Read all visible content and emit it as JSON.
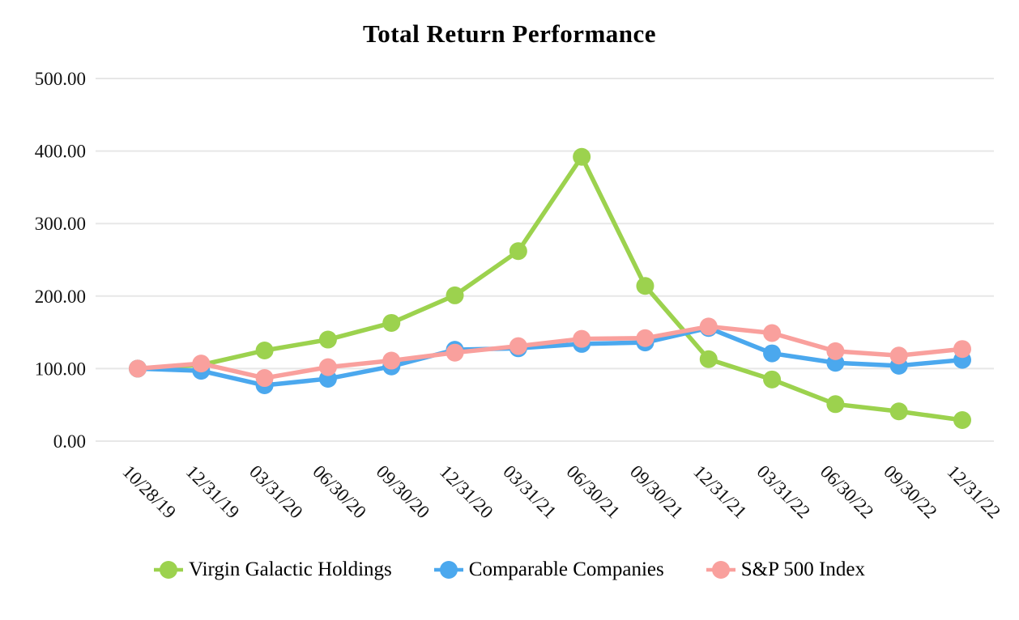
{
  "chart_data": {
    "type": "line",
    "title": "Total Return Performance",
    "x_labels": [
      "10/28/19",
      "12/31/19",
      "03/31/20",
      "06/30/20",
      "09/30/20",
      "12/31/20",
      "03/31/21",
      "06/30/21",
      "09/30/21",
      "12/31/21",
      "03/31/22",
      "06/30/22",
      "09/30/22",
      "12/31/22"
    ],
    "y_ticks": [
      {
        "label": "500.00",
        "value": 500
      },
      {
        "label": "400.00",
        "value": 400
      },
      {
        "label": "300.00",
        "value": 300
      },
      {
        "label": "200.00",
        "value": 200
      },
      {
        "label": "100.00",
        "value": 100
      },
      {
        "label": "0.00",
        "value": 0
      }
    ],
    "ylim": [
      0,
      500
    ],
    "grid": "horizontal-only",
    "gridline_color": "#E7E7E7",
    "legend_position": "bottom",
    "marker_style": "filled-circle",
    "series": [
      {
        "name": "Virgin Galactic Holdings",
        "color": "#9CD24E",
        "values": [
          100,
          105,
          125,
          140,
          163,
          201,
          262,
          392,
          214,
          113,
          85,
          51,
          41,
          29
        ]
      },
      {
        "name": "Comparable Companies",
        "color": "#4BA8EE",
        "values": [
          100,
          97,
          77,
          86,
          103,
          126,
          128,
          134,
          136,
          156,
          121,
          108,
          104,
          112
        ]
      },
      {
        "name": "S&P 500 Index",
        "color": "#F9A09D",
        "values": [
          100,
          107,
          87,
          102,
          111,
          122,
          131,
          141,
          142,
          158,
          149,
          124,
          118,
          127
        ]
      }
    ]
  }
}
